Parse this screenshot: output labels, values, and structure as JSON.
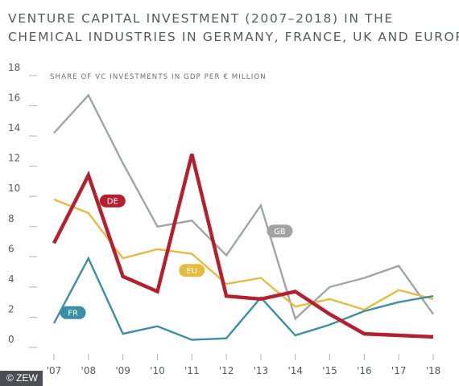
{
  "title": {
    "line1": "Venture capital investment (2007–2018) in the",
    "line2": "chemical industries in Germany, France, UK and Europe"
  },
  "credit": "© ZEW",
  "chart_data": {
    "type": "line",
    "annotation": "Share of VC investments in GDP per € million",
    "categories": [
      "'07",
      "'08",
      "'09",
      "'10",
      "'11",
      "'12",
      "'13",
      "'14",
      "'15",
      "'16",
      "'17",
      "'18"
    ],
    "y_ticks": [
      "0",
      "2",
      "4",
      "6",
      "8",
      "10",
      "12",
      "14",
      "16",
      "18"
    ],
    "ylim": [
      0,
      18
    ],
    "grid": false,
    "series": [
      {
        "name": "GB",
        "color": "#a0a4a7",
        "values": [
          14.2,
          16.7,
          12.2,
          8.0,
          8.4,
          6.1,
          9.4,
          1.9,
          4.0,
          4.6,
          5.4,
          2.2
        ]
      },
      {
        "name": "EU",
        "color": "#e7bb3f",
        "values": [
          9.8,
          8.9,
          5.9,
          6.5,
          6.2,
          4.2,
          4.6,
          2.7,
          3.2,
          2.5,
          3.8,
          3.2
        ]
      },
      {
        "name": "FR",
        "color": "#3a8ea6",
        "values": [
          1.6,
          5.9,
          0.9,
          1.4,
          0.5,
          0.6,
          3.3,
          0.8,
          1.5,
          2.4,
          3.0,
          3.4
        ]
      },
      {
        "name": "DE",
        "color": "#b51f2e",
        "values": [
          6.9,
          11.4,
          4.7,
          3.7,
          12.8,
          3.4,
          3.2,
          3.7,
          2.2,
          0.9,
          0.8,
          0.7
        ]
      }
    ]
  }
}
